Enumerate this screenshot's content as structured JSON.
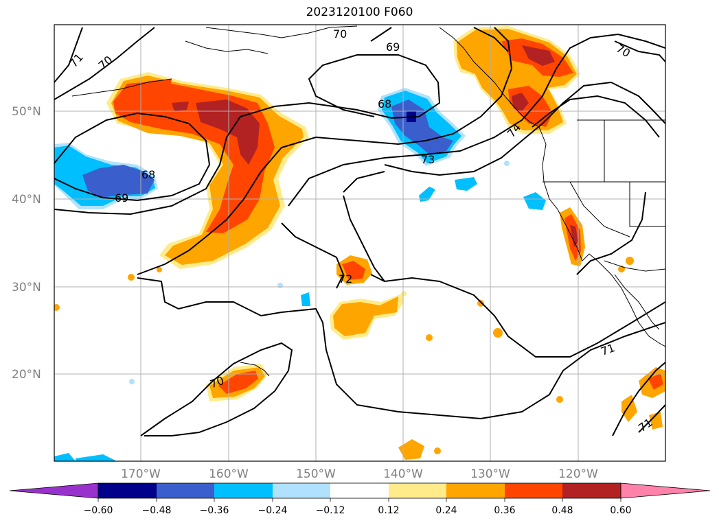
{
  "title": "2023120100 F060",
  "map": {
    "lat_labels": [
      "50°N",
      "40°N",
      "30°N",
      "20°N"
    ],
    "lon_labels": [
      "170°W",
      "160°W",
      "150°W",
      "140°W",
      "130°W",
      "120°W"
    ],
    "contour_labels": [
      "70",
      "71",
      "70",
      "69",
      "68",
      "73",
      "74",
      "70",
      "68",
      "69",
      "72",
      "71",
      "70",
      "71"
    ]
  },
  "colorbar": {
    "ticks": [
      "−0.60",
      "−0.48",
      "−0.36",
      "−0.24",
      "−0.12",
      "0.12",
      "0.24",
      "0.36",
      "0.48",
      "0.60"
    ],
    "colors": [
      "#9932cc",
      "#00008b",
      "#3a5fcd",
      "#00bfff",
      "#b0e2ff",
      "#ffffff",
      "#ffeb8a",
      "#ffa500",
      "#ff4500",
      "#b22222",
      "#ff82ab"
    ]
  }
}
